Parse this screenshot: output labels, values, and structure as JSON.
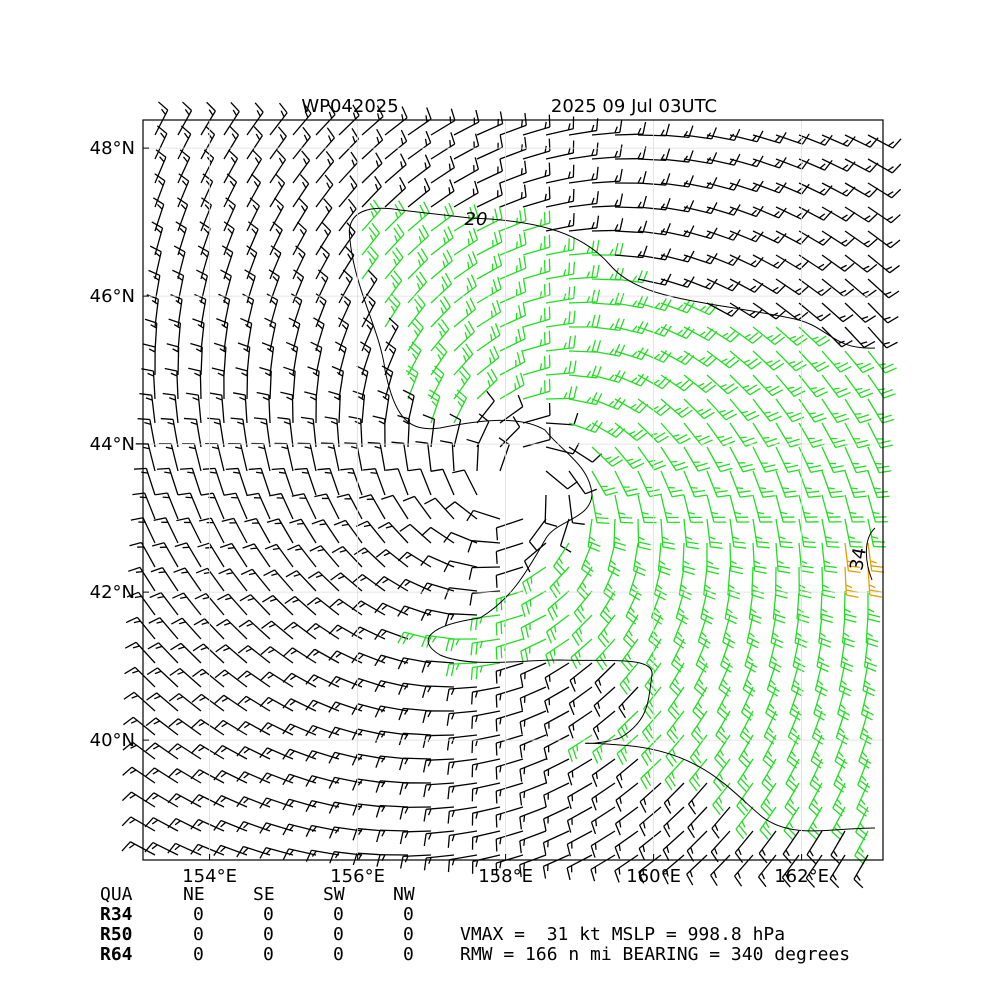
{
  "map": {
    "title": "WP042025",
    "time": "2025 09 Jul 03UTC",
    "xlim": [
      153.1,
      163.1
    ],
    "ylim": [
      38.38,
      48.38
    ],
    "xticks": [
      {
        "value": 154,
        "label": "154°E"
      },
      {
        "value": 156,
        "label": "156°E"
      },
      {
        "value": 158,
        "label": "158°E"
      },
      {
        "value": 160,
        "label": "160°E"
      },
      {
        "value": 162,
        "label": "162°E"
      }
    ],
    "yticks": [
      {
        "value": 40,
        "label": "40°N"
      },
      {
        "value": 42,
        "label": "42°N"
      },
      {
        "value": 44,
        "label": "44°N"
      },
      {
        "value": 46,
        "label": "46°N"
      },
      {
        "value": 48,
        "label": "48°N"
      }
    ],
    "grid": true,
    "contour_labels": [
      "20",
      "34"
    ]
  },
  "table": {
    "header": [
      "QUA",
      "NE",
      "SE",
      "SW",
      "NW"
    ],
    "rows": [
      [
        "R34",
        "0",
        "0",
        "0",
        "0"
      ],
      [
        "R50",
        "0",
        "0",
        "0",
        "0"
      ],
      [
        "R64",
        "0",
        "0",
        "0",
        "0"
      ]
    ]
  },
  "stats": [
    "VMAX =  31 kt MSLP = 998.8 hPa",
    "RMW = 166 n mi BEARING = 340 degrees"
  ]
}
